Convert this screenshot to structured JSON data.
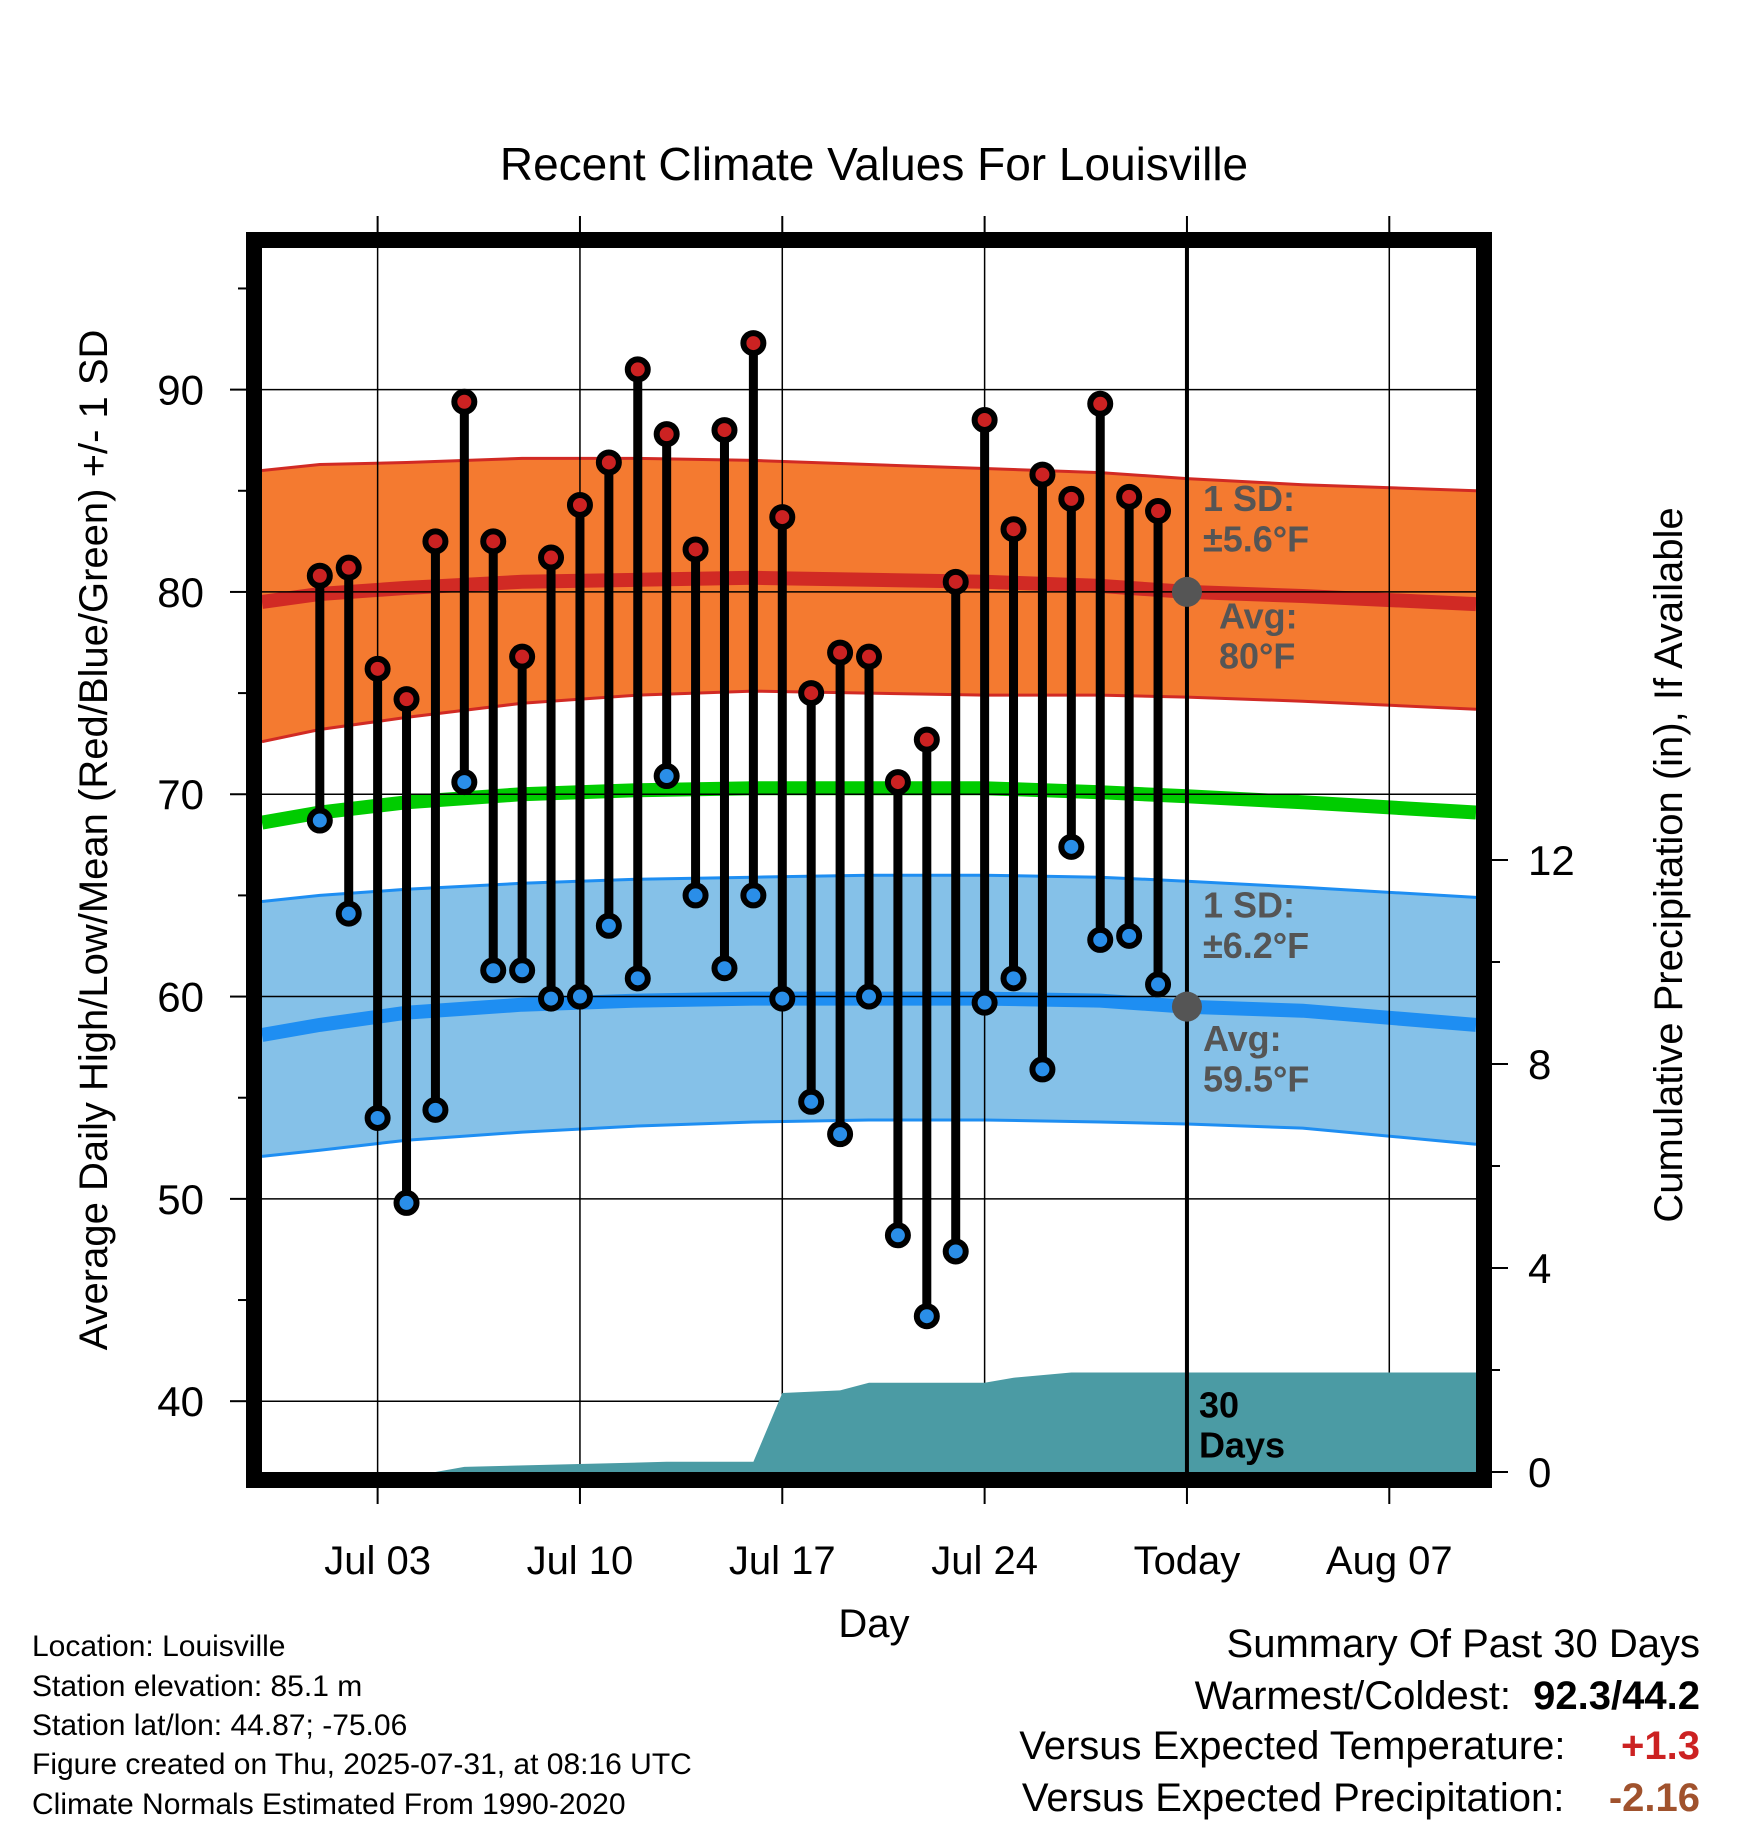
{
  "chart_data": {
    "type": "line",
    "title": "Recent Climate Values For Louisville",
    "xlabel": "Day",
    "ylabel": "Average Daily High/Low/Mean (Red/Blue/Green) +/- 1 SD",
    "y2label": "Cumulative Precipitation (in), If Available",
    "xlim": [
      "2025-06-29",
      "2025-08-10"
    ],
    "ylim": [
      36.5,
      97
    ],
    "y2lim": [
      0,
      24
    ],
    "yticks": [
      40,
      50,
      60,
      70,
      80,
      90
    ],
    "y2ticks": [
      0,
      4,
      8,
      12
    ],
    "xticks": [
      {
        "date": "2025-07-03",
        "label": "Jul 03"
      },
      {
        "date": "2025-07-10",
        "label": "Jul 10"
      },
      {
        "date": "2025-07-17",
        "label": "Jul 17"
      },
      {
        "date": "2025-07-24",
        "label": "Jul 24"
      },
      {
        "date": "2025-07-31",
        "label": "Today"
      },
      {
        "date": "2025-08-07",
        "label": "Aug 07"
      }
    ],
    "grid": true,
    "normals": {
      "dates": [
        "2025-06-29",
        "2025-07-01",
        "2025-07-04",
        "2025-07-08",
        "2025-07-12",
        "2025-07-16",
        "2025-07-20",
        "2025-07-24",
        "2025-07-28",
        "2025-07-31",
        "2025-08-04",
        "2025-08-10"
      ],
      "high_avg": [
        79.5,
        79.9,
        80.2,
        80.5,
        80.6,
        80.7,
        80.6,
        80.5,
        80.3,
        80.0,
        79.8,
        79.4
      ],
      "high_upper": [
        86.0,
        86.3,
        86.4,
        86.6,
        86.6,
        86.5,
        86.3,
        86.1,
        85.9,
        85.6,
        85.3,
        85.0
      ],
      "high_lower": [
        72.6,
        73.2,
        73.8,
        74.5,
        74.9,
        75.1,
        75.0,
        74.9,
        74.9,
        74.8,
        74.6,
        74.2
      ],
      "low_avg": [
        58.1,
        58.6,
        59.2,
        59.6,
        59.8,
        59.9,
        59.9,
        59.9,
        59.8,
        59.5,
        59.3,
        58.6
      ],
      "low_upper": [
        64.7,
        65.0,
        65.3,
        65.6,
        65.8,
        65.9,
        66.0,
        66.0,
        65.9,
        65.7,
        65.4,
        64.9
      ],
      "low_lower": [
        52.1,
        52.4,
        52.9,
        53.3,
        53.6,
        53.8,
        53.9,
        53.9,
        53.8,
        53.7,
        53.5,
        52.7
      ],
      "mean_avg": [
        68.6,
        69.1,
        69.6,
        70.0,
        70.2,
        70.3,
        70.3,
        70.3,
        70.1,
        69.9,
        69.6,
        69.1
      ]
    },
    "series": [
      {
        "name": "High",
        "color": "#cc2222",
        "dates": [
          "2025-07-01",
          "2025-07-02",
          "2025-07-03",
          "2025-07-04",
          "2025-07-05",
          "2025-07-06",
          "2025-07-07",
          "2025-07-08",
          "2025-07-09",
          "2025-07-10",
          "2025-07-11",
          "2025-07-12",
          "2025-07-13",
          "2025-07-14",
          "2025-07-15",
          "2025-07-16",
          "2025-07-17",
          "2025-07-18",
          "2025-07-19",
          "2025-07-20",
          "2025-07-21",
          "2025-07-22",
          "2025-07-23",
          "2025-07-24",
          "2025-07-25",
          "2025-07-26",
          "2025-07-27",
          "2025-07-28",
          "2025-07-29",
          "2025-07-30"
        ],
        "values": [
          80.8,
          81.2,
          76.2,
          74.7,
          82.5,
          89.4,
          82.5,
          76.8,
          81.7,
          84.3,
          86.4,
          91.0,
          87.8,
          82.1,
          88.0,
          92.3,
          83.7,
          75.0,
          77.0,
          76.8,
          70.6,
          72.7,
          80.5,
          88.5,
          83.1,
          85.8,
          84.6,
          89.3,
          84.7,
          84.0
        ]
      },
      {
        "name": "Low",
        "color": "#2a8ee8",
        "dates": [
          "2025-07-01",
          "2025-07-02",
          "2025-07-03",
          "2025-07-04",
          "2025-07-05",
          "2025-07-06",
          "2025-07-07",
          "2025-07-08",
          "2025-07-09",
          "2025-07-10",
          "2025-07-11",
          "2025-07-12",
          "2025-07-13",
          "2025-07-14",
          "2025-07-15",
          "2025-07-16",
          "2025-07-17",
          "2025-07-18",
          "2025-07-19",
          "2025-07-20",
          "2025-07-21",
          "2025-07-22",
          "2025-07-23",
          "2025-07-24",
          "2025-07-25",
          "2025-07-26",
          "2025-07-27",
          "2025-07-28",
          "2025-07-29",
          "2025-07-30"
        ],
        "values": [
          68.7,
          64.1,
          54.0,
          49.8,
          54.4,
          70.6,
          61.3,
          61.3,
          59.9,
          60.0,
          63.5,
          60.9,
          70.9,
          65.0,
          61.4,
          65.0,
          59.9,
          54.8,
          53.2,
          60.0,
          48.2,
          44.2,
          47.4,
          59.7,
          60.9,
          56.4,
          67.4,
          62.8,
          63.0,
          60.6
        ]
      },
      {
        "name": "Cumulative Precipitation",
        "color": "#4b9ba4",
        "dates": [
          "2025-06-29",
          "2025-07-05",
          "2025-07-06",
          "2025-07-13",
          "2025-07-15",
          "2025-07-16",
          "2025-07-17",
          "2025-07-19",
          "2025-07-20",
          "2025-07-24",
          "2025-07-25",
          "2025-07-27",
          "2025-08-10"
        ],
        "values": [
          0,
          0,
          0.1,
          0.2,
          0.2,
          0.2,
          1.55,
          1.6,
          1.75,
          1.75,
          1.85,
          1.95,
          1.95
        ]
      }
    ],
    "annotations": {
      "today_date": "2025-07-31",
      "high_sd": "1 SD: ±5.6°F",
      "high_avg_label": "Avg: 80°F",
      "high_avg_value": 80,
      "low_sd": "1 SD: ±6.2°F",
      "low_avg_label": "Avg: 59.5°F",
      "low_avg_value": 59.5,
      "window_label": "30 Days"
    }
  },
  "colors": {
    "high_band": "#f47a30",
    "high_line": "#d12a24",
    "low_band": "#85c1e8",
    "low_line": "#1e8ef2",
    "mean_line": "#00cc00",
    "precip": "#4b9ba4",
    "annotation_text": "#555555",
    "positive_anomaly": "#cc2222",
    "negative_anomaly": "#a0522d"
  },
  "info": {
    "location": "Location: Louisville",
    "elevation": "Station elevation: 85.1 m",
    "latlon": "Station lat/lon: 44.87; -75.06",
    "created": "Figure created on Thu, 2025-07-31, at 08:16 UTC",
    "normals": "Climate Normals Estimated From 1990-2020"
  },
  "summary": {
    "title": "Summary Of Past 30 Days",
    "warm_cold_label": "Warmest/Coldest:",
    "warm_cold_value": "92.3/44.2",
    "temp_label": "Versus Expected Temperature:",
    "temp_value": "+1.3",
    "precip_label": "Versus Expected Precipitation:",
    "precip_value": "-2.16"
  }
}
